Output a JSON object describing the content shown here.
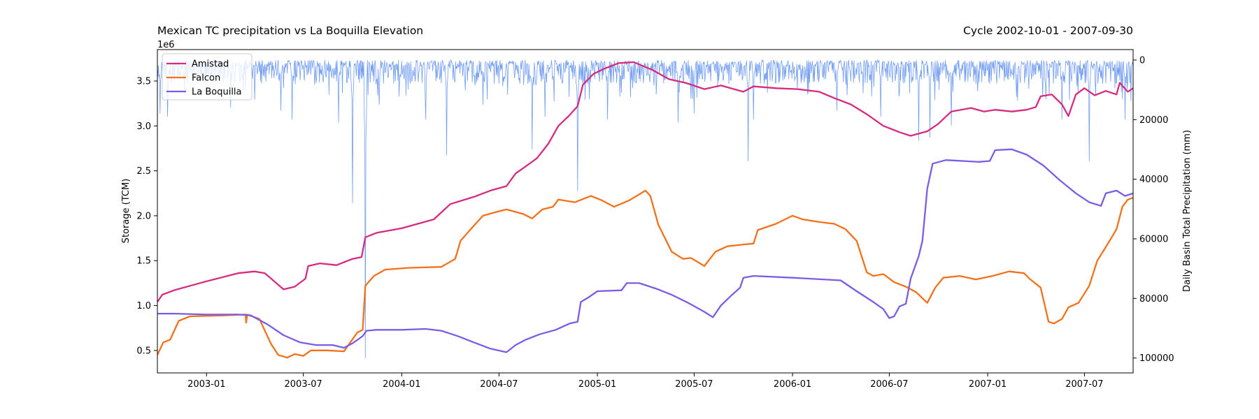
{
  "chart_data": {
    "type": "line",
    "title_left": "Mexican TC precipitation vs La Boquilla Elevation",
    "title_right": "Cycle 2002-10-01 - 2007-09-30",
    "ylabel_left": "Storage (TCM)",
    "ylabel_right": "Daily Basin Total Precipitation (mm)",
    "offset_label": "1e6",
    "xlim": [
      "2002-10-01",
      "2007-09-30"
    ],
    "ylim_left": [
      0.25,
      3.85
    ],
    "ylim_right": [
      105000,
      -3500
    ],
    "right_axis_inverted": true,
    "grid": false,
    "legend_position": "upper-left",
    "x_ticks": [
      "2003-01",
      "2003-07",
      "2004-01",
      "2004-07",
      "2005-01",
      "2005-07",
      "2006-01",
      "2006-07",
      "2007-01",
      "2007-07"
    ],
    "y_ticks_left": [
      "0.5",
      "1.0",
      "1.5",
      "2.0",
      "2.5",
      "3.0",
      "3.5"
    ],
    "y_ticks_right": [
      "0",
      "20000",
      "40000",
      "60000",
      "80000",
      "100000"
    ],
    "series": [
      {
        "name": "Amistad",
        "color": "#d62b7f",
        "points": [
          [
            "2002-10-01",
            1.04
          ],
          [
            "2002-10-10",
            1.12
          ],
          [
            "2002-11-01",
            1.17
          ],
          [
            "2003-01-01",
            1.27
          ],
          [
            "2003-03-01",
            1.36
          ],
          [
            "2003-04-01",
            1.38
          ],
          [
            "2003-04-20",
            1.36
          ],
          [
            "2003-05-25",
            1.18
          ],
          [
            "2003-06-15",
            1.21
          ],
          [
            "2003-07-05",
            1.3
          ],
          [
            "2003-07-10",
            1.44
          ],
          [
            "2003-08-01",
            1.47
          ],
          [
            "2003-09-01",
            1.45
          ],
          [
            "2003-10-01",
            1.52
          ],
          [
            "2003-10-18",
            1.54
          ],
          [
            "2003-10-25",
            1.76
          ],
          [
            "2003-11-15",
            1.81
          ],
          [
            "2004-01-01",
            1.86
          ],
          [
            "2004-03-01",
            1.96
          ],
          [
            "2004-04-01",
            2.13
          ],
          [
            "2004-05-15",
            2.21
          ],
          [
            "2004-06-15",
            2.28
          ],
          [
            "2004-07-15",
            2.33
          ],
          [
            "2004-08-01",
            2.47
          ],
          [
            "2004-08-20",
            2.55
          ],
          [
            "2004-09-10",
            2.64
          ],
          [
            "2004-10-01",
            2.8
          ],
          [
            "2004-10-20",
            3.0
          ],
          [
            "2004-11-10",
            3.12
          ],
          [
            "2004-11-25",
            3.22
          ],
          [
            "2004-12-05",
            3.46
          ],
          [
            "2004-12-25",
            3.58
          ],
          [
            "2005-01-15",
            3.64
          ],
          [
            "2005-02-10",
            3.7
          ],
          [
            "2005-03-10",
            3.71
          ],
          [
            "2005-04-15",
            3.62
          ],
          [
            "2005-05-15",
            3.52
          ],
          [
            "2005-06-15",
            3.48
          ],
          [
            "2005-07-20",
            3.41
          ],
          [
            "2005-08-20",
            3.45
          ],
          [
            "2005-10-01",
            3.38
          ],
          [
            "2005-10-20",
            3.44
          ],
          [
            "2005-12-01",
            3.42
          ],
          [
            "2006-01-10",
            3.41
          ],
          [
            "2006-02-20",
            3.38
          ],
          [
            "2006-03-20",
            3.31
          ],
          [
            "2006-04-20",
            3.24
          ],
          [
            "2006-05-20",
            3.13
          ],
          [
            "2006-06-20",
            3.0
          ],
          [
            "2006-07-20",
            2.93
          ],
          [
            "2006-08-10",
            2.89
          ],
          [
            "2006-09-10",
            2.94
          ],
          [
            "2006-09-30",
            3.02
          ],
          [
            "2006-10-25",
            3.16
          ],
          [
            "2006-12-01",
            3.2
          ],
          [
            "2006-12-25",
            3.16
          ],
          [
            "2007-01-15",
            3.18
          ],
          [
            "2007-02-15",
            3.16
          ],
          [
            "2007-03-15",
            3.18
          ],
          [
            "2007-04-01",
            3.21
          ],
          [
            "2007-04-10",
            3.33
          ],
          [
            "2007-05-01",
            3.35
          ],
          [
            "2007-05-20",
            3.24
          ],
          [
            "2007-06-01",
            3.11
          ],
          [
            "2007-06-15",
            3.35
          ],
          [
            "2007-07-01",
            3.42
          ],
          [
            "2007-07-20",
            3.34
          ],
          [
            "2007-08-10",
            3.39
          ],
          [
            "2007-08-30",
            3.35
          ],
          [
            "2007-09-05",
            3.48
          ],
          [
            "2007-09-20",
            3.38
          ],
          [
            "2007-09-30",
            3.42
          ]
        ]
      },
      {
        "name": "Falcon",
        "color": "#f4711a",
        "points": [
          [
            "2002-10-01",
            0.45
          ],
          [
            "2002-10-12",
            0.59
          ],
          [
            "2002-10-25",
            0.62
          ],
          [
            "2002-11-10",
            0.83
          ],
          [
            "2002-12-01",
            0.88
          ],
          [
            "2003-02-01",
            0.89
          ],
          [
            "2003-03-15",
            0.9
          ],
          [
            "2003-03-16",
            0.81
          ],
          [
            "2003-03-18",
            0.9
          ],
          [
            "2003-04-10",
            0.85
          ],
          [
            "2003-05-01",
            0.58
          ],
          [
            "2003-05-15",
            0.45
          ],
          [
            "2003-06-01",
            0.42
          ],
          [
            "2003-06-15",
            0.46
          ],
          [
            "2003-07-01",
            0.44
          ],
          [
            "2003-07-15",
            0.5
          ],
          [
            "2003-08-15",
            0.5
          ],
          [
            "2003-09-15",
            0.49
          ],
          [
            "2003-10-10",
            0.7
          ],
          [
            "2003-10-20",
            0.73
          ],
          [
            "2003-10-25",
            1.22
          ],
          [
            "2003-11-10",
            1.33
          ],
          [
            "2003-12-01",
            1.4
          ],
          [
            "2004-01-15",
            1.42
          ],
          [
            "2004-03-15",
            1.43
          ],
          [
            "2004-04-10",
            1.52
          ],
          [
            "2004-04-20",
            1.72
          ],
          [
            "2004-05-15",
            1.89
          ],
          [
            "2004-06-01",
            2.0
          ],
          [
            "2004-07-01",
            2.05
          ],
          [
            "2004-07-15",
            2.07
          ],
          [
            "2004-08-15",
            2.02
          ],
          [
            "2004-09-01",
            1.97
          ],
          [
            "2004-09-20",
            2.07
          ],
          [
            "2004-10-10",
            2.1
          ],
          [
            "2004-10-20",
            2.18
          ],
          [
            "2004-11-20",
            2.15
          ],
          [
            "2004-12-20",
            2.22
          ],
          [
            "2005-01-10",
            2.17
          ],
          [
            "2005-02-01",
            2.1
          ],
          [
            "2005-03-01",
            2.17
          ],
          [
            "2005-04-01",
            2.28
          ],
          [
            "2005-04-10",
            2.22
          ],
          [
            "2005-04-25",
            1.9
          ],
          [
            "2005-05-20",
            1.6
          ],
          [
            "2005-06-10",
            1.52
          ],
          [
            "2005-06-25",
            1.53
          ],
          [
            "2005-07-20",
            1.44
          ],
          [
            "2005-08-10",
            1.6
          ],
          [
            "2005-09-01",
            1.66
          ],
          [
            "2005-10-01",
            1.68
          ],
          [
            "2005-10-20",
            1.69
          ],
          [
            "2005-10-28",
            1.84
          ],
          [
            "2005-12-01",
            1.91
          ],
          [
            "2006-01-01",
            2.0
          ],
          [
            "2006-01-20",
            1.96
          ],
          [
            "2006-02-20",
            1.93
          ],
          [
            "2006-03-20",
            1.91
          ],
          [
            "2006-04-10",
            1.85
          ],
          [
            "2006-05-01",
            1.72
          ],
          [
            "2006-05-20",
            1.37
          ],
          [
            "2006-06-01",
            1.33
          ],
          [
            "2006-06-20",
            1.35
          ],
          [
            "2006-07-10",
            1.26
          ],
          [
            "2006-08-01",
            1.21
          ],
          [
            "2006-08-20",
            1.15
          ],
          [
            "2006-09-10",
            1.03
          ],
          [
            "2006-09-25",
            1.2
          ],
          [
            "2006-10-10",
            1.31
          ],
          [
            "2006-11-10",
            1.33
          ],
          [
            "2006-12-10",
            1.29
          ],
          [
            "2007-01-10",
            1.33
          ],
          [
            "2007-02-10",
            1.38
          ],
          [
            "2007-03-10",
            1.36
          ],
          [
            "2007-03-20",
            1.3
          ],
          [
            "2007-04-10",
            1.2
          ],
          [
            "2007-04-25",
            0.82
          ],
          [
            "2007-05-05",
            0.8
          ],
          [
            "2007-05-20",
            0.85
          ],
          [
            "2007-06-01",
            0.98
          ],
          [
            "2007-06-20",
            1.03
          ],
          [
            "2007-07-10",
            1.22
          ],
          [
            "2007-07-25",
            1.5
          ],
          [
            "2007-08-15",
            1.7
          ],
          [
            "2007-08-30",
            1.85
          ],
          [
            "2007-09-10",
            2.1
          ],
          [
            "2007-09-20",
            2.18
          ],
          [
            "2007-09-30",
            2.2
          ]
        ]
      },
      {
        "name": "La Boquilla",
        "color": "#7b5ce6",
        "points": [
          [
            "2002-10-01",
            0.91
          ],
          [
            "2002-11-01",
            0.91
          ],
          [
            "2003-01-01",
            0.9
          ],
          [
            "2003-03-01",
            0.9
          ],
          [
            "2003-03-25",
            0.89
          ],
          [
            "2003-04-25",
            0.79
          ],
          [
            "2003-05-25",
            0.67
          ],
          [
            "2003-06-25",
            0.59
          ],
          [
            "2003-07-25",
            0.56
          ],
          [
            "2003-08-25",
            0.56
          ],
          [
            "2003-09-15",
            0.53
          ],
          [
            "2003-10-01",
            0.58
          ],
          [
            "2003-10-20",
            0.66
          ],
          [
            "2003-10-27",
            0.72
          ],
          [
            "2003-11-15",
            0.73
          ],
          [
            "2004-01-01",
            0.73
          ],
          [
            "2004-02-15",
            0.74
          ],
          [
            "2004-03-15",
            0.72
          ],
          [
            "2004-04-15",
            0.66
          ],
          [
            "2004-05-15",
            0.59
          ],
          [
            "2004-06-15",
            0.52
          ],
          [
            "2004-07-15",
            0.48
          ],
          [
            "2004-08-01",
            0.56
          ],
          [
            "2004-08-20",
            0.62
          ],
          [
            "2004-09-15",
            0.68
          ],
          [
            "2004-10-15",
            0.73
          ],
          [
            "2004-11-10",
            0.8
          ],
          [
            "2004-11-25",
            0.82
          ],
          [
            "2004-12-01",
            1.04
          ],
          [
            "2004-12-15",
            1.09
          ],
          [
            "2005-01-01",
            1.16
          ],
          [
            "2005-02-15",
            1.17
          ],
          [
            "2005-02-25",
            1.25
          ],
          [
            "2005-03-20",
            1.25
          ],
          [
            "2005-04-20",
            1.19
          ],
          [
            "2005-05-20",
            1.12
          ],
          [
            "2005-06-20",
            1.03
          ],
          [
            "2005-07-20",
            0.93
          ],
          [
            "2005-08-05",
            0.87
          ],
          [
            "2005-08-20",
            1.0
          ],
          [
            "2005-09-10",
            1.12
          ],
          [
            "2005-09-25",
            1.2
          ],
          [
            "2005-10-01",
            1.31
          ],
          [
            "2005-10-20",
            1.33
          ],
          [
            "2006-01-01",
            1.31
          ],
          [
            "2006-04-01",
            1.28
          ],
          [
            "2006-05-01",
            1.16
          ],
          [
            "2006-06-01",
            1.04
          ],
          [
            "2006-06-20",
            0.96
          ],
          [
            "2006-07-01",
            0.86
          ],
          [
            "2006-07-10",
            0.88
          ],
          [
            "2006-07-20",
            0.99
          ],
          [
            "2006-08-01",
            1.02
          ],
          [
            "2006-08-10",
            1.3
          ],
          [
            "2006-08-25",
            1.55
          ],
          [
            "2006-09-01",
            1.72
          ],
          [
            "2006-09-10",
            2.3
          ],
          [
            "2006-09-20",
            2.58
          ],
          [
            "2006-10-15",
            2.62
          ],
          [
            "2006-12-15",
            2.6
          ],
          [
            "2007-01-05",
            2.61
          ],
          [
            "2007-01-15",
            2.73
          ],
          [
            "2007-02-15",
            2.74
          ],
          [
            "2007-03-15",
            2.68
          ],
          [
            "2007-04-15",
            2.56
          ],
          [
            "2007-05-15",
            2.4
          ],
          [
            "2007-06-15",
            2.25
          ],
          [
            "2007-07-10",
            2.15
          ],
          [
            "2007-08-01",
            2.11
          ],
          [
            "2007-08-10",
            2.25
          ],
          [
            "2007-08-30",
            2.28
          ],
          [
            "2007-09-15",
            2.22
          ],
          [
            "2007-09-30",
            2.25
          ]
        ]
      }
    ],
    "precipitation": {
      "color": "#5b8def",
      "typical_range": [
        0,
        8000
      ],
      "spikes": [
        [
          "2002-10-06",
          18000
        ],
        [
          "2002-10-20",
          19000
        ],
        [
          "2003-02-15",
          16000
        ],
        [
          "2003-05-20",
          17000
        ],
        [
          "2003-06-10",
          20000
        ],
        [
          "2003-09-05",
          21000
        ],
        [
          "2003-10-01",
          48000
        ],
        [
          "2003-10-25",
          100000
        ],
        [
          "2003-11-20",
          15000
        ],
        [
          "2004-02-15",
          20000
        ],
        [
          "2004-03-25",
          32000
        ],
        [
          "2004-06-01",
          15000
        ],
        [
          "2004-09-01",
          30000
        ],
        [
          "2004-09-25",
          19000
        ],
        [
          "2004-11-25",
          44000
        ],
        [
          "2005-01-20",
          20000
        ],
        [
          "2005-06-01",
          21000
        ],
        [
          "2005-07-01",
          18000
        ],
        [
          "2005-10-10",
          34000
        ],
        [
          "2005-10-20",
          20000
        ],
        [
          "2006-03-25",
          17000
        ],
        [
          "2006-06-15",
          19000
        ],
        [
          "2006-08-25",
          27000
        ],
        [
          "2006-09-15",
          26000
        ],
        [
          "2006-10-25",
          22000
        ],
        [
          "2007-05-20",
          20000
        ],
        [
          "2007-07-10",
          34000
        ],
        [
          "2007-09-15",
          20000
        ]
      ]
    }
  }
}
